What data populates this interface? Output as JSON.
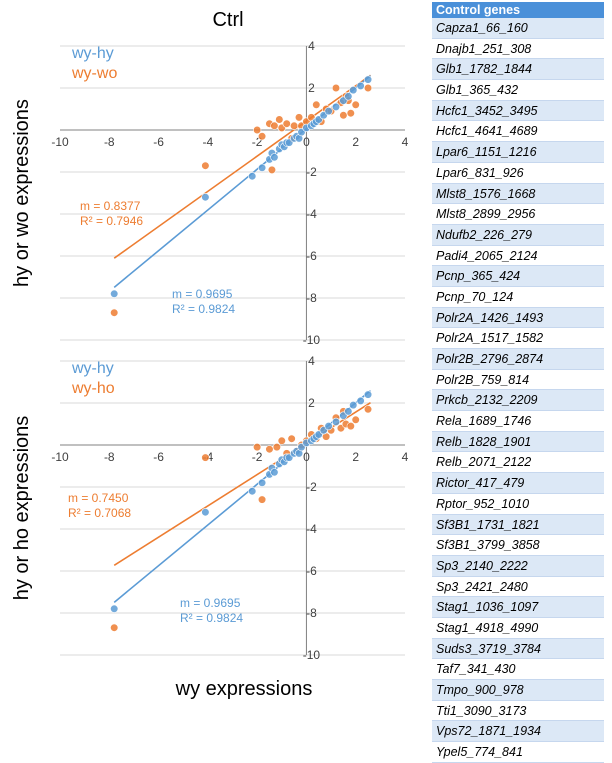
{
  "title": "Ctrl",
  "x_label": "wy expressions",
  "colors": {
    "blue": "#5b9bd5",
    "orange": "#ed7d31"
  },
  "chart_data": [
    {
      "type": "scatter",
      "ylabel": "hy or wo expressions",
      "xlim": [
        -10,
        4
      ],
      "ylim": [
        -10,
        4
      ],
      "x_ticks": [
        "-10",
        "-8",
        "-6",
        "-4",
        "-2",
        "0",
        "2",
        "4"
      ],
      "y_ticks": [
        "4",
        "2",
        "-2",
        "-4",
        "-6",
        "-8",
        "-10"
      ],
      "grid": true,
      "legend": [
        "wy-hy",
        "wy-wo"
      ],
      "series": [
        {
          "name": "wy-hy",
          "color": "#5b9bd5",
          "points": [
            [
              -7.8,
              -7.8
            ],
            [
              -4.1,
              -3.2
            ],
            [
              -2.2,
              -2.2
            ],
            [
              -1.8,
              -1.8
            ],
            [
              -1.5,
              -1.4
            ],
            [
              -1.4,
              -1.1
            ],
            [
              -1.3,
              -1.3
            ],
            [
              -1.1,
              -0.9
            ],
            [
              -1.0,
              -0.7
            ],
            [
              -0.9,
              -0.8
            ],
            [
              -0.8,
              -0.6
            ],
            [
              -0.7,
              -0.6
            ],
            [
              -0.5,
              -0.4
            ],
            [
              -0.4,
              -0.3
            ],
            [
              -0.3,
              -0.4
            ],
            [
              -0.2,
              -0.1
            ],
            [
              0.0,
              0.1
            ],
            [
              0.2,
              0.2
            ],
            [
              0.3,
              0.3
            ],
            [
              0.4,
              0.4
            ],
            [
              0.5,
              0.5
            ],
            [
              0.7,
              0.7
            ],
            [
              0.9,
              0.9
            ],
            [
              1.2,
              1.1
            ],
            [
              1.5,
              1.4
            ],
            [
              1.7,
              1.6
            ],
            [
              1.9,
              1.9
            ],
            [
              2.2,
              2.1
            ],
            [
              2.5,
              2.4
            ]
          ],
          "fit": {
            "m": "m = 0.9695",
            "r2": "R² = 0.9824",
            "slope": 0.9695,
            "intercept": 0.07
          }
        },
        {
          "name": "wy-wo",
          "color": "#ed7d31",
          "points": [
            [
              -7.8,
              -8.7
            ],
            [
              -4.1,
              -1.7
            ],
            [
              -2.0,
              0.0
            ],
            [
              -1.8,
              -0.3
            ],
            [
              -1.5,
              0.3
            ],
            [
              -1.4,
              -1.9
            ],
            [
              -1.3,
              0.2
            ],
            [
              -1.1,
              0.5
            ],
            [
              -1.0,
              0.1
            ],
            [
              -0.8,
              0.3
            ],
            [
              -0.6,
              -0.4
            ],
            [
              -0.5,
              0.2
            ],
            [
              -0.3,
              0.6
            ],
            [
              -0.2,
              0.2
            ],
            [
              0.0,
              0.4
            ],
            [
              0.2,
              0.6
            ],
            [
              0.4,
              1.2
            ],
            [
              0.6,
              0.4
            ],
            [
              0.8,
              1.0
            ],
            [
              1.0,
              0.9
            ],
            [
              1.2,
              2.0
            ],
            [
              1.4,
              1.3
            ],
            [
              1.5,
              0.7
            ],
            [
              1.6,
              1.6
            ],
            [
              1.7,
              1.4
            ],
            [
              1.8,
              0.8
            ],
            [
              2.0,
              1.2
            ],
            [
              2.5,
              2.0
            ]
          ],
          "fit": {
            "m": "m = 0.8377",
            "r2": "R² = 0.7946",
            "slope": 0.8377,
            "intercept": 0.43
          }
        }
      ]
    },
    {
      "type": "scatter",
      "ylabel": "hy or ho expressions",
      "xlim": [
        -10,
        4
      ],
      "ylim": [
        -10,
        4
      ],
      "x_ticks": [
        "-10",
        "-8",
        "-6",
        "-4",
        "-2",
        "0",
        "2",
        "4"
      ],
      "y_ticks": [
        "4",
        "2",
        "-2",
        "-4",
        "-6",
        "-8",
        "-10"
      ],
      "grid": true,
      "legend": [
        "wy-hy",
        "wy-ho"
      ],
      "series": [
        {
          "name": "wy-hy",
          "color": "#5b9bd5",
          "points": [
            [
              -7.8,
              -7.8
            ],
            [
              -4.1,
              -3.2
            ],
            [
              -2.2,
              -2.2
            ],
            [
              -1.8,
              -1.8
            ],
            [
              -1.5,
              -1.4
            ],
            [
              -1.4,
              -1.1
            ],
            [
              -1.3,
              -1.3
            ],
            [
              -1.1,
              -0.9
            ],
            [
              -1.0,
              -0.7
            ],
            [
              -0.9,
              -0.8
            ],
            [
              -0.8,
              -0.6
            ],
            [
              -0.7,
              -0.6
            ],
            [
              -0.5,
              -0.4
            ],
            [
              -0.4,
              -0.3
            ],
            [
              -0.3,
              -0.4
            ],
            [
              -0.2,
              -0.1
            ],
            [
              0.0,
              0.1
            ],
            [
              0.2,
              0.2
            ],
            [
              0.3,
              0.3
            ],
            [
              0.4,
              0.4
            ],
            [
              0.5,
              0.5
            ],
            [
              0.7,
              0.7
            ],
            [
              0.9,
              0.9
            ],
            [
              1.2,
              1.1
            ],
            [
              1.5,
              1.4
            ],
            [
              1.7,
              1.6
            ],
            [
              1.9,
              1.9
            ],
            [
              2.2,
              2.1
            ],
            [
              2.5,
              2.4
            ]
          ],
          "fit": {
            "m": "m = 0.9695",
            "r2": "R² = 0.9824",
            "slope": 0.9695,
            "intercept": 0.07
          }
        },
        {
          "name": "wy-ho",
          "color": "#ed7d31",
          "points": [
            [
              -7.8,
              -8.7
            ],
            [
              -4.1,
              -0.6
            ],
            [
              -2.0,
              -0.1
            ],
            [
              -1.8,
              -2.6
            ],
            [
              -1.5,
              -0.2
            ],
            [
              -1.2,
              -0.1
            ],
            [
              -1.0,
              0.2
            ],
            [
              -0.8,
              -0.4
            ],
            [
              -0.6,
              0.3
            ],
            [
              -0.4,
              -0.3
            ],
            [
              -0.2,
              0.0
            ],
            [
              0.0,
              0.2
            ],
            [
              0.2,
              0.5
            ],
            [
              0.4,
              0.3
            ],
            [
              0.6,
              0.8
            ],
            [
              0.8,
              0.4
            ],
            [
              1.0,
              0.7
            ],
            [
              1.2,
              1.3
            ],
            [
              1.4,
              0.8
            ],
            [
              1.5,
              1.6
            ],
            [
              1.6,
              1.0
            ],
            [
              1.8,
              0.9
            ],
            [
              2.0,
              1.2
            ],
            [
              2.5,
              1.7
            ]
          ],
          "fit": {
            "m": "m = 0.7450",
            "r2": "R² = 0.7068",
            "slope": 0.745,
            "intercept": 0.08
          }
        }
      ]
    }
  ],
  "gene_table": {
    "header": "Control genes",
    "rows": [
      "Capza1_66_160",
      "Dnajb1_251_308",
      "Glb1_1782_1844",
      "Glb1_365_432",
      "Hcfc1_3452_3495",
      "Hcfc1_4641_4689",
      "Lpar6_1151_1216",
      "Lpar6_831_926",
      "Mlst8_1576_1668",
      "Mlst8_2899_2956",
      "Ndufb2_226_279",
      "Padi4_2065_2124",
      "Pcnp_365_424",
      "Pcnp_70_124",
      "Polr2A_1426_1493",
      "Polr2A_1517_1582",
      "Polr2B_2796_2874",
      "Polr2B_759_814",
      "Prkcb_2132_2209",
      "Rela_1689_1746",
      "Relb_1828_1901",
      "Relb_2071_2122",
      "Rictor_417_479",
      "Rptor_952_1010",
      "Sf3B1_1731_1821",
      "Sf3B1_3799_3858",
      "Sp3_2140_2222",
      "Sp3_2421_2480",
      "Stag1_1036_1097",
      "Stag1_4918_4990",
      "Suds3_3719_3784",
      "Taf7_341_430",
      "Tmpo_900_978",
      "Tti1_3090_3173",
      "Vps72_1871_1934",
      "Ypel5_774_841"
    ]
  }
}
